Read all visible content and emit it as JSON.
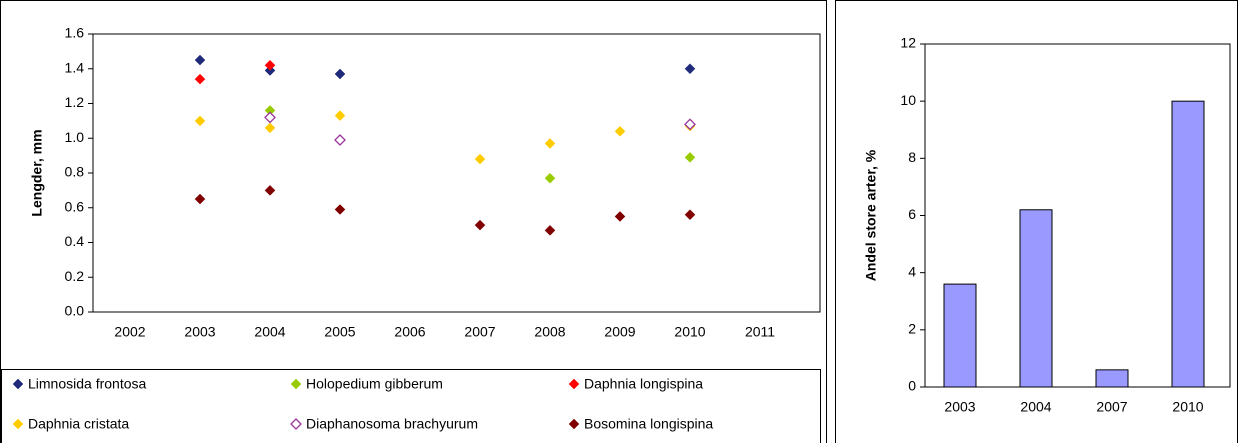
{
  "chart_data": [
    {
      "type": "scatter",
      "y_label": "Lengder, mm",
      "categories": [
        "2002",
        "2003",
        "2004",
        "2005",
        "2006",
        "2007",
        "2008",
        "2009",
        "2010",
        "2011"
      ],
      "ylim": [
        0,
        1.6
      ],
      "yticks": [
        {
          "value": 0,
          "label": "0.0"
        },
        0.2,
        0.4,
        0.6,
        0.8,
        {
          "value": 1,
          "label": "1.0"
        },
        1.2,
        1.4,
        1.6
      ],
      "series": [
        {
          "name": "Limnosida frontosa",
          "color": "#1f2a7a",
          "values": [
            null,
            1.45,
            1.39,
            1.37,
            null,
            null,
            null,
            null,
            1.4,
            null
          ]
        },
        {
          "name": "Holopedium gibberum",
          "color": "#99cc00",
          "values": [
            null,
            null,
            1.16,
            null,
            null,
            null,
            0.77,
            null,
            0.89,
            null
          ]
        },
        {
          "name": "Daphnia longispina",
          "color": "#ff0000",
          "values": [
            null,
            1.34,
            1.42,
            null,
            null,
            null,
            null,
            null,
            null,
            null
          ]
        },
        {
          "name": "Daphnia cristata",
          "color": "#ffcc00",
          "values": [
            null,
            1.1,
            1.06,
            1.13,
            null,
            0.88,
            0.97,
            1.04,
            1.07,
            null
          ]
        },
        {
          "name": "Diaphanosoma brachyurum",
          "color": "#993399",
          "hollow": true,
          "values": [
            null,
            null,
            1.12,
            0.99,
            null,
            null,
            null,
            null,
            1.08,
            null
          ]
        },
        {
          "name": "Bosomina longispina",
          "color": "#800000",
          "values": [
            null,
            0.65,
            0.7,
            0.59,
            null,
            0.5,
            0.47,
            0.55,
            0.56,
            null
          ]
        }
      ]
    },
    {
      "type": "bar",
      "y_label": "Andel store arter, %",
      "categories": [
        "2003",
        "2004",
        "2007",
        "2010"
      ],
      "values": [
        3.6,
        6.2,
        0.6,
        10.0
      ],
      "color": "#9999ff",
      "ylim": [
        0,
        12
      ],
      "yticks": [
        0,
        2,
        4,
        6,
        8,
        10,
        12
      ]
    }
  ]
}
